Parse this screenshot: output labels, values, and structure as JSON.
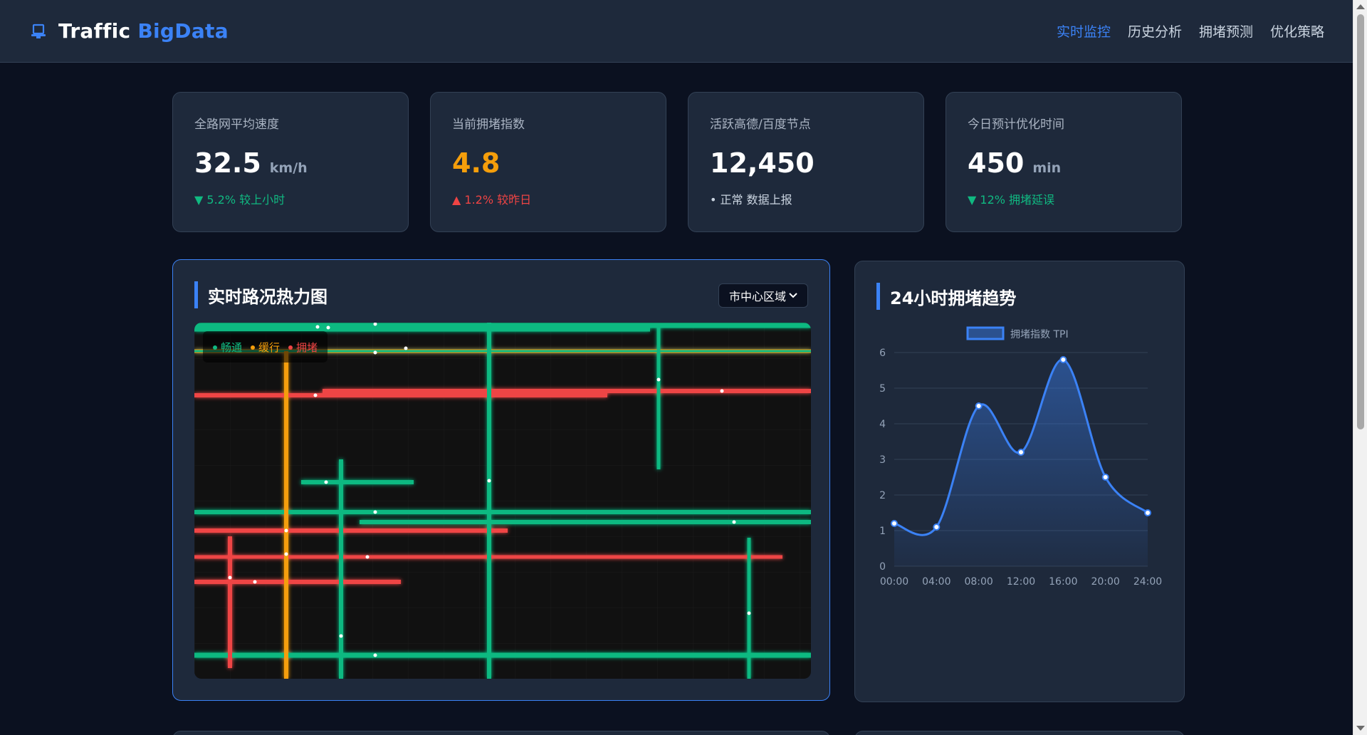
{
  "header": {
    "brand_word1": "Traffic",
    "brand_word2": "BigData",
    "nav": [
      {
        "label": "实时监控",
        "active": true
      },
      {
        "label": "历史分析",
        "active": false
      },
      {
        "label": "拥堵预测",
        "active": false
      },
      {
        "label": "优化策略",
        "active": false
      }
    ]
  },
  "kpis": [
    {
      "label": "全路网平均速度",
      "value": "32.5",
      "unit": "km/h",
      "change": "▼ 5.2% 较上小时",
      "tone": "green"
    },
    {
      "label": "当前拥堵指数",
      "value": "4.8",
      "unit": "",
      "change": "▲ 1.2% 较昨日",
      "tone": "red"
    },
    {
      "label": "活跃高德/百度节点",
      "value": "12,450",
      "unit": "",
      "change": "• 正常 数据上报",
      "tone": "gray"
    },
    {
      "label": "今日预计优化时间",
      "value": "450",
      "unit": "min",
      "change": "▼ 12% 拥堵延误",
      "tone": "green"
    }
  ],
  "heatmap": {
    "title": "实时路况热力图",
    "region_select": "市中心区域",
    "legend": {
      "smooth": "畅通",
      "slow": "缓行",
      "jam": "拥堵"
    },
    "colors": {
      "smooth": "#10b981",
      "slow": "#f59e0b",
      "jam": "#ef4444"
    }
  },
  "trend": {
    "title": "24小时拥堵趋势"
  },
  "chart_data": {
    "type": "line",
    "title": "24小时拥堵趋势",
    "categories": [
      "00:00",
      "04:00",
      "08:00",
      "12:00",
      "16:00",
      "20:00",
      "24:00"
    ],
    "series": [
      {
        "name": "拥堵指数 TPI",
        "values": [
          1.2,
          1.1,
          4.5,
          3.2,
          5.8,
          2.5,
          1.5
        ],
        "color": "#3b82f6"
      }
    ],
    "ylim": [
      0,
      6
    ],
    "yticks": [
      0,
      1,
      2,
      3,
      4,
      5,
      6
    ],
    "grid": true,
    "legend_position": "top-center",
    "fill": "area"
  }
}
